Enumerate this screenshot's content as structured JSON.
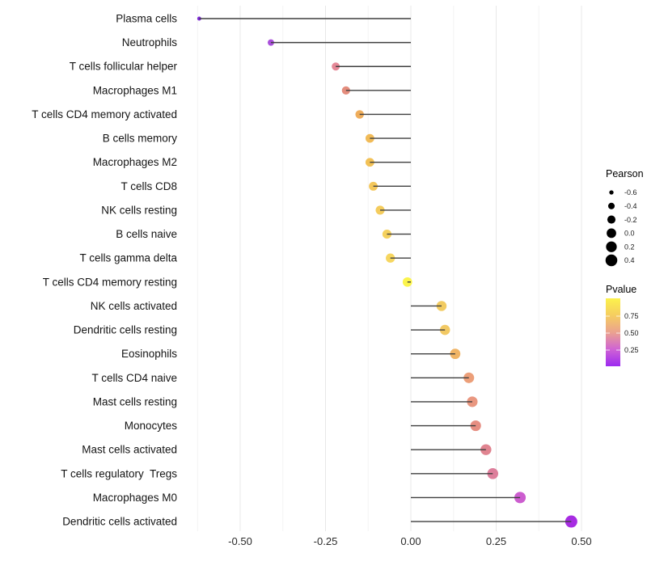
{
  "chart_data": {
    "type": "lollipop",
    "orientation": "horizontal",
    "title": "",
    "xlabel": "",
    "ylabel": "",
    "grid": true,
    "legend_position": "right",
    "value_name": "Pearson",
    "color_name": "Pvalue",
    "x_axis": {
      "tick_labels": [
        "-0.50",
        "-0.25",
        "0.00",
        "0.25",
        "0.50"
      ],
      "tick_values": [
        -0.5,
        -0.25,
        0,
        0.25,
        0.5
      ],
      "minor_tick_values": [
        -0.625,
        -0.375,
        -0.125,
        0.125,
        0.375
      ],
      "range": [
        -0.675,
        0.53
      ]
    },
    "points": [
      {
        "label": "Plasma cells",
        "pearson": -0.62,
        "color": "#7f2ad8"
      },
      {
        "label": "Neutrophils",
        "pearson": -0.41,
        "color": "#a94fdb"
      },
      {
        "label": "T cells follicular helper",
        "pearson": -0.22,
        "color": "#e58897"
      },
      {
        "label": "Macrophages M1",
        "pearson": -0.19,
        "color": "#e48d7d"
      },
      {
        "label": "T cells CD4 memory activated",
        "pearson": -0.15,
        "color": "#efad5b"
      },
      {
        "label": "B cells memory",
        "pearson": -0.12,
        "color": "#f1bb58"
      },
      {
        "label": "Macrophages M2",
        "pearson": -0.12,
        "color": "#f2c156"
      },
      {
        "label": "T cells CD8",
        "pearson": -0.11,
        "color": "#f4c75a"
      },
      {
        "label": "NK cells resting",
        "pearson": -0.09,
        "color": "#f4cc5d"
      },
      {
        "label": "B cells naive",
        "pearson": -0.07,
        "color": "#f5d15e"
      },
      {
        "label": "T cells gamma delta",
        "pearson": -0.06,
        "color": "#f6d660"
      },
      {
        "label": "T cells CD4 memory resting",
        "pearson": -0.01,
        "color": "#fbf44c"
      },
      {
        "label": "NK cells activated",
        "pearson": 0.09,
        "color": "#f2cb61"
      },
      {
        "label": "Dendritic cells resting",
        "pearson": 0.1,
        "color": "#f2c964"
      },
      {
        "label": "Eosinophils",
        "pearson": 0.13,
        "color": "#f0b465"
      },
      {
        "label": "T cells CD4 naive",
        "pearson": 0.17,
        "color": "#ec9f79"
      },
      {
        "label": "Mast cells resting",
        "pearson": 0.18,
        "color": "#e99780"
      },
      {
        "label": "Monocytes",
        "pearson": 0.19,
        "color": "#e68e82"
      },
      {
        "label": "Mast cells activated",
        "pearson": 0.22,
        "color": "#e08490"
      },
      {
        "label": "T cells regulatory  Tregs",
        "pearson": 0.24,
        "color": "#dd7e9b"
      },
      {
        "label": "Macrophages M0",
        "pearson": 0.32,
        "color": "#cc5dcf"
      },
      {
        "label": "Dendritic cells activated",
        "pearson": 0.47,
        "color": "#a72ce2"
      }
    ]
  },
  "size_legend": {
    "title": "Pearson",
    "entries": [
      {
        "label": "-0.6",
        "value": -0.6
      },
      {
        "label": "-0.4",
        "value": -0.4
      },
      {
        "label": "-0.2",
        "value": -0.2
      },
      {
        "label": "0.0",
        "value": 0.0
      },
      {
        "label": "0.2",
        "value": 0.2
      },
      {
        "label": "0.4",
        "value": 0.4
      }
    ]
  },
  "color_legend": {
    "title": "Pvalue",
    "tick_labels": [
      "0.75",
      "0.50",
      "0.25"
    ],
    "tick_values": [
      0.75,
      0.5,
      0.25
    ],
    "gradient_top_to_bottom": [
      "#fcf24c",
      "#f5cd60",
      "#eba28f",
      "#cf63d4",
      "#9d2af0"
    ]
  },
  "colors": {
    "background": "#ffffff",
    "stem": "#3f3f3f",
    "grid_major": "#e8e8e8",
    "grid_minor": "#f3f3f3"
  }
}
